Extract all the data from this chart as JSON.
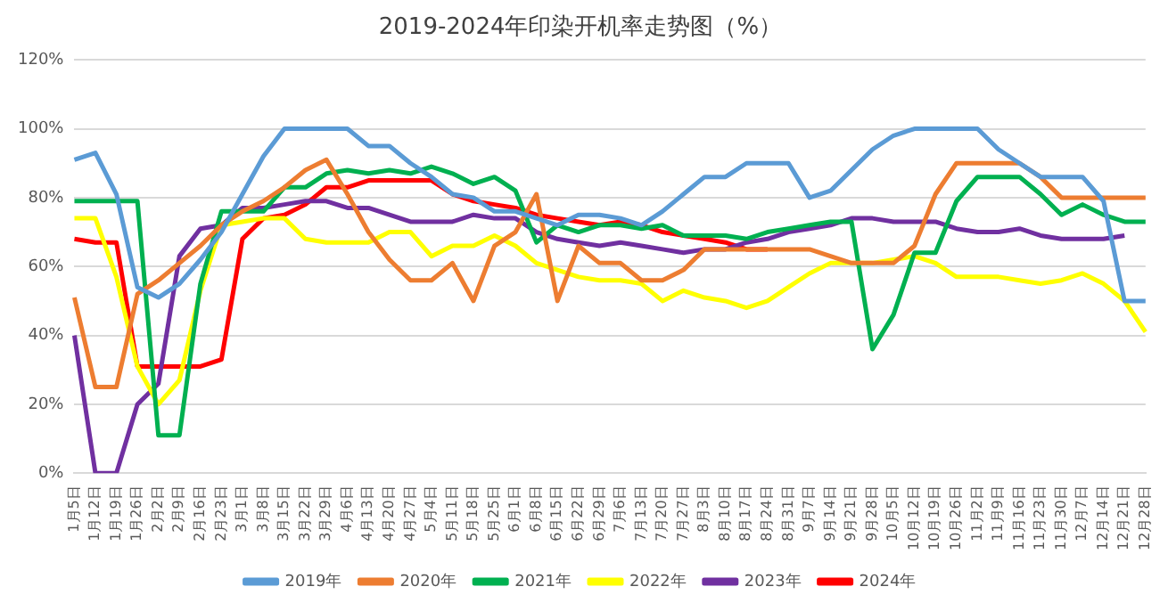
{
  "chart_data": {
    "type": "line",
    "title": "2019-2024年印染开机率走势图（%）",
    "categories": [
      "1月5日",
      "1月12日",
      "1月19日",
      "1月26日",
      "2月2日",
      "2月9日",
      "2月16日",
      "2月23日",
      "3月1日",
      "3月8日",
      "3月15日",
      "3月22日",
      "3月29日",
      "4月6日",
      "4月13日",
      "4月20日",
      "4月27日",
      "5月4日",
      "5月11日",
      "5月18日",
      "5月25日",
      "6月1日",
      "6月8日",
      "6月15日",
      "6月22日",
      "6月29日",
      "7月6日",
      "7月13日",
      "7月20日",
      "7月27日",
      "8月3日",
      "8月10日",
      "8月17日",
      "8月24日",
      "8月31日",
      "9月7日",
      "9月14日",
      "9月21日",
      "9月28日",
      "10月5日",
      "10月12日",
      "10月19日",
      "10月26日",
      "11月2日",
      "11月9日",
      "11月16日",
      "11月23日",
      "11月30日",
      "12月7日",
      "12月14日",
      "12月21日",
      "12月28日"
    ],
    "series": [
      {
        "name": "2019年",
        "color": "#5b9bd5",
        "values": [
          91,
          93,
          81,
          54,
          51,
          55,
          62,
          70,
          81,
          92,
          100,
          100,
          100,
          100,
          95,
          95,
          90,
          86,
          81,
          80,
          76,
          76,
          74,
          72,
          75,
          75,
          74,
          72,
          76,
          81,
          86,
          86,
          90,
          90,
          90,
          80,
          82,
          88,
          94,
          98,
          100,
          100,
          100,
          100,
          94,
          90,
          86,
          86,
          86,
          79,
          50,
          50
        ]
      },
      {
        "name": "2020年",
        "color": "#ed7d31",
        "values": [
          51,
          25,
          25,
          52,
          56,
          61,
          66,
          72,
          76,
          79,
          83,
          88,
          91,
          81,
          70,
          62,
          56,
          56,
          61,
          50,
          66,
          70,
          81,
          50,
          66,
          61,
          61,
          56,
          56,
          59,
          65,
          65,
          65,
          65,
          65,
          65,
          63,
          61,
          61,
          61,
          66,
          81,
          90,
          90,
          90,
          90,
          86,
          80,
          80,
          80,
          80,
          80
        ]
      },
      {
        "name": "2021年",
        "color": "#00b050",
        "values": [
          79,
          79,
          79,
          79,
          11,
          11,
          55,
          76,
          76,
          76,
          83,
          83,
          87,
          88,
          87,
          88,
          87,
          89,
          87,
          84,
          86,
          82,
          67,
          72,
          70,
          72,
          72,
          71,
          72,
          69,
          69,
          69,
          68,
          70,
          71,
          72,
          73,
          73,
          36,
          46,
          64,
          64,
          79,
          86,
          86,
          86,
          81,
          75,
          78,
          75,
          73,
          73
        ]
      },
      {
        "name": "2022年",
        "color": "#ffff00",
        "values": [
          74,
          74,
          57,
          31,
          20,
          27,
          53,
          72,
          73,
          74,
          74,
          68,
          67,
          67,
          67,
          70,
          70,
          63,
          66,
          66,
          69,
          66,
          61,
          59,
          57,
          56,
          56,
          55,
          50,
          53,
          51,
          50,
          48,
          50,
          54,
          58,
          61,
          61,
          61,
          62,
          63,
          61,
          57,
          57,
          57,
          56,
          55,
          56,
          58,
          55,
          50,
          41
        ]
      },
      {
        "name": "2023年",
        "color": "#7030a0",
        "values": [
          40,
          0,
          0,
          20,
          26,
          63,
          71,
          72,
          77,
          77,
          78,
          79,
          79,
          77,
          77,
          75,
          73,
          73,
          73,
          75,
          74,
          74,
          70,
          68,
          67,
          66,
          67,
          66,
          65,
          64,
          65,
          65,
          67,
          68,
          70,
          71,
          72,
          74,
          74,
          73,
          73,
          73,
          71,
          70,
          70,
          71,
          69,
          68,
          68,
          68,
          69,
          null
        ]
      },
      {
        "name": "2024年",
        "color": "#ff0000",
        "values": [
          68,
          67,
          67,
          31,
          31,
          31,
          31,
          33,
          68,
          74,
          75,
          78,
          83,
          83,
          85,
          85,
          85,
          85,
          81,
          79,
          78,
          77,
          75,
          74,
          73,
          72,
          73,
          72,
          70,
          69,
          68,
          67,
          65,
          65,
          null,
          null,
          null,
          null,
          null,
          null,
          null,
          null,
          null,
          null,
          null,
          null,
          null,
          null,
          null,
          null,
          null,
          null
        ]
      }
    ],
    "ylim": [
      0,
      120
    ],
    "yticks": [
      {
        "value": 0,
        "label": "0%"
      },
      {
        "value": 20,
        "label": "20%"
      },
      {
        "value": 40,
        "label": "40%"
      },
      {
        "value": 60,
        "label": "60%"
      },
      {
        "value": 80,
        "label": "80%"
      },
      {
        "value": 100,
        "label": "100%"
      },
      {
        "value": 120,
        "label": "120%"
      }
    ],
    "grid": "y",
    "legend": "bottom",
    "marker": "none",
    "line_style": "solid"
  }
}
